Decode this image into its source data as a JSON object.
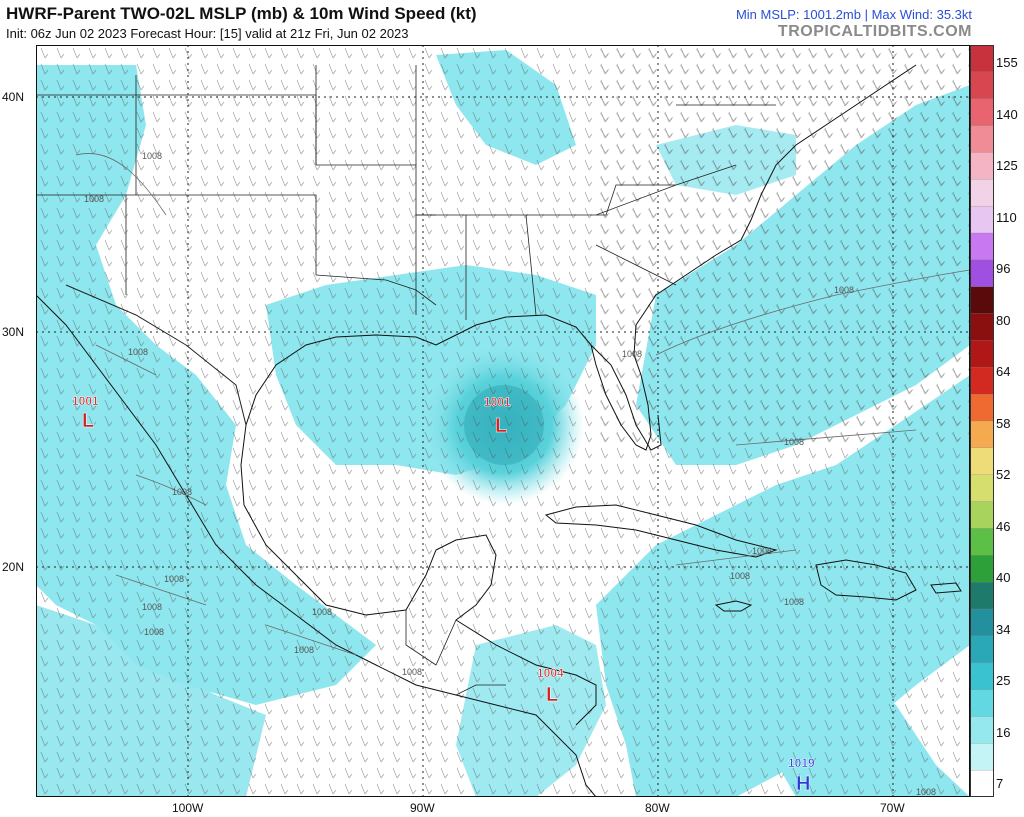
{
  "header": {
    "title": "HWRF-Parent TWO-02L MSLP (mb) & 10m Wind Speed (kt)",
    "init_info": "Init: 06z Jun 02 2023   Forecast Hour: [15]   valid at 21z Fri, Jun 02 2023",
    "stats": "Min MSLP: 1001.2mb | Max Wind: 35.3kt",
    "credit": "TROPICALTIDBITS.COM"
  },
  "axes": {
    "lat_labels": [
      "40N",
      "30N",
      "20N"
    ],
    "lon_labels": [
      "100W",
      "90W",
      "80W",
      "70W"
    ]
  },
  "colorbar": {
    "labels": [
      "155",
      "140",
      "125",
      "110",
      "96",
      "80",
      "64",
      "58",
      "52",
      "46",
      "40",
      "34",
      "25",
      "16",
      "7"
    ],
    "colors": [
      "#c8323c",
      "#d84650",
      "#e8646e",
      "#f08c96",
      "#f4b4c4",
      "#f2d2e6",
      "#e8c6f2",
      "#c878f0",
      "#a050e0",
      "#5a0a0a",
      "#8a1010",
      "#b01818",
      "#d22a20",
      "#ee6a30",
      "#f5aa50",
      "#eedc78",
      "#d6de6e",
      "#a8d45e",
      "#5cbf46",
      "#2ea03a",
      "#1e7a6a",
      "#23909e",
      "#2aa8b8",
      "#3ac2d0",
      "#62d8e2",
      "#94e8ee",
      "#c4f4f6",
      "#ffffff"
    ]
  },
  "pressure_systems": [
    {
      "value": "1001",
      "letter": "L",
      "color": "#d42020"
    },
    {
      "value": "1001",
      "letter": "L",
      "color": "#d42020"
    },
    {
      "value": "1004",
      "letter": "L",
      "color": "#d42020"
    },
    {
      "value": "1019",
      "letter": "H",
      "color": "#2a3ad6"
    }
  ],
  "isobar_labels": [
    "1008"
  ]
}
